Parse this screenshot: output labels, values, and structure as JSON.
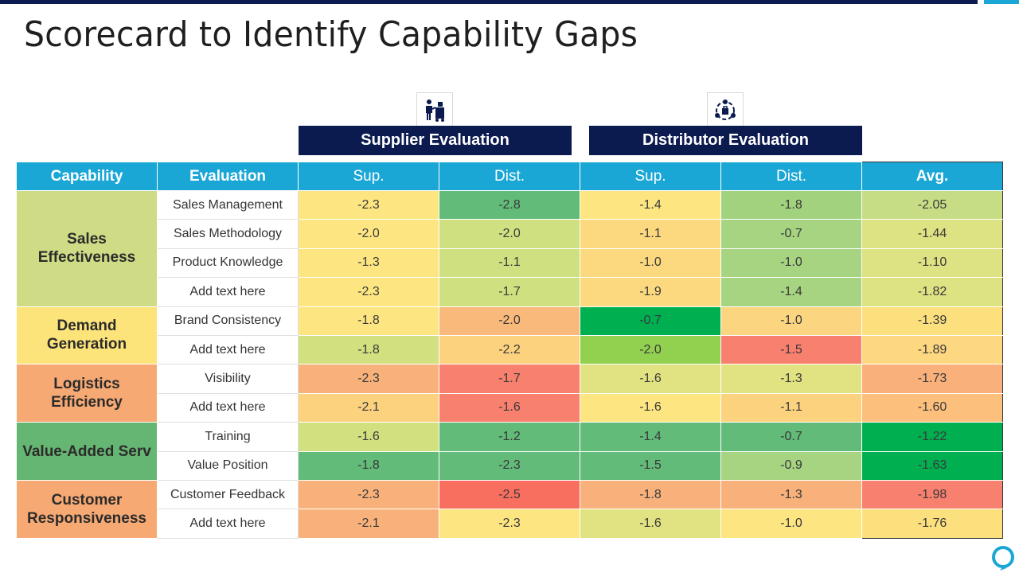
{
  "title": "Scorecard to Identify Capability Gaps",
  "groups": {
    "supplier": "Supplier Evaluation",
    "distributor": "Distributor Evaluation"
  },
  "headers": {
    "capability": "Capability",
    "evaluation": "Evaluation",
    "sup1": "Sup.",
    "dist1": "Dist.",
    "sup2": "Sup.",
    "dist2": "Dist.",
    "avg": "Avg."
  },
  "capabilities": [
    {
      "name": "Sales Effectiveness",
      "color": "#cfdc85"
    },
    {
      "name": "Demand Generation",
      "color": "#fde47a"
    },
    {
      "name": "Logistics Efficiency",
      "color": "#f7a973"
    },
    {
      "name": "Value-Added Serv",
      "color": "#66b673"
    },
    {
      "name": "Customer Responsiveness",
      "color": "#f7a973"
    }
  ],
  "rows": [
    {
      "evaluation": "Sales Management",
      "values": [
        "-2.3",
        "-2.8",
        "-1.4",
        "-1.8",
        "-2.05"
      ],
      "colors": [
        "#fde681",
        "#62bb79",
        "#fde681",
        "#a3d27e",
        "#c6dd85"
      ]
    },
    {
      "evaluation": "Sales Methodology",
      "values": [
        "-2.0",
        "-2.0",
        "-1.1",
        "-0.7",
        "-1.44"
      ],
      "colors": [
        "#fde681",
        "#cee07f",
        "#fcd97f",
        "#a6d481",
        "#dde283"
      ]
    },
    {
      "evaluation": "Product Knowledge",
      "values": [
        "-1.3",
        "-1.1",
        "-1.0",
        "-1.0",
        "-1.10"
      ],
      "colors": [
        "#fde681",
        "#cee07f",
        "#fcd97f",
        "#a6d481",
        "#dde283"
      ]
    },
    {
      "evaluation": "Add text here",
      "values": [
        "-2.3",
        "-1.7",
        "-1.9",
        "-1.4",
        "-1.82"
      ],
      "colors": [
        "#fde681",
        "#cee07f",
        "#fcd97f",
        "#a6d481",
        "#dde283"
      ]
    },
    {
      "evaluation": "Brand Consistency",
      "values": [
        "-1.8",
        "-2.0",
        "-0.7",
        "-1.0",
        "-1.39"
      ],
      "colors": [
        "#fde681",
        "#f8b97a",
        "#00b050",
        "#fcd581",
        "#fde07e"
      ]
    },
    {
      "evaluation": "Add text here",
      "values": [
        "-1.8",
        "-2.2",
        "-2.0",
        "-1.5",
        "-1.89"
      ],
      "colors": [
        "#d2e07f",
        "#fcd27f",
        "#92d050",
        "#f8806e",
        "#fdd880"
      ]
    },
    {
      "evaluation": "Visibility",
      "values": [
        "-2.3",
        "-1.7",
        "-1.6",
        "-1.3",
        "-1.73"
      ],
      "colors": [
        "#f8b17a",
        "#f8806e",
        "#e1e383",
        "#e1e383",
        "#f9b07a"
      ]
    },
    {
      "evaluation": "Add text here",
      "values": [
        "-2.1",
        "-1.6",
        "-1.6",
        "-1.1",
        "-1.60"
      ],
      "colors": [
        "#fcd27f",
        "#f8806e",
        "#fde681",
        "#fcd27f",
        "#fcbf7c"
      ]
    },
    {
      "evaluation": "Training",
      "values": [
        "-1.6",
        "-1.2",
        "-1.4",
        "-0.7",
        "-1.22"
      ],
      "colors": [
        "#d2e07f",
        "#62bb79",
        "#62bb79",
        "#62bb79",
        "#00b050"
      ]
    },
    {
      "evaluation": "Value Position",
      "values": [
        "-1.8",
        "-2.3",
        "-1.5",
        "-0.9",
        "-1.63"
      ],
      "colors": [
        "#62bb79",
        "#62bb79",
        "#62bb79",
        "#a6d481",
        "#00b050"
      ]
    },
    {
      "evaluation": "Customer Feedback",
      "values": [
        "-2.3",
        "-2.5",
        "-1.8",
        "-1.3",
        "-1.98"
      ],
      "colors": [
        "#f8b17a",
        "#f86e5f",
        "#f8b17a",
        "#f8b17a",
        "#f8806e"
      ]
    },
    {
      "evaluation": "Add text here",
      "values": [
        "-2.1",
        "-2.3",
        "-1.6",
        "-1.0",
        "-1.76"
      ],
      "colors": [
        "#f8b17a",
        "#fde681",
        "#e1e383",
        "#fde681",
        "#fde07e"
      ]
    }
  ]
}
